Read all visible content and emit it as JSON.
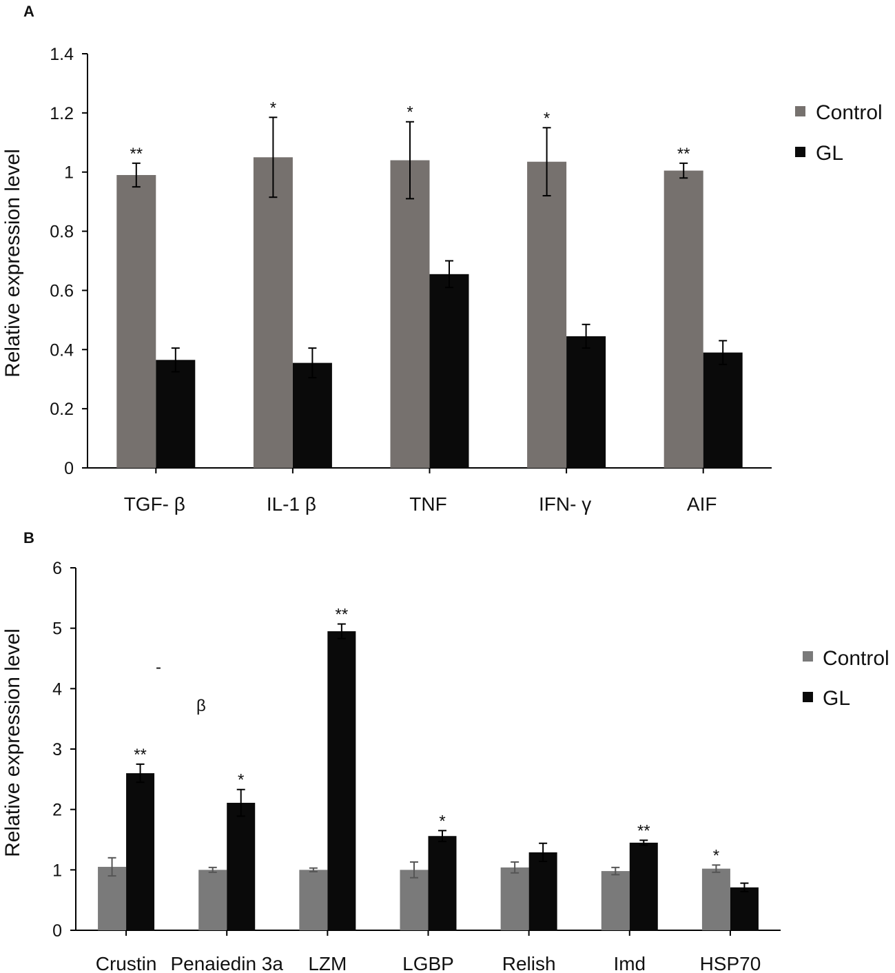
{
  "chart_data": [
    {
      "panel": "A",
      "type": "bar",
      "ylabel": "Relative expression level",
      "xlabel": "",
      "ylim": [
        0,
        1.4
      ],
      "yticks": [
        "0",
        "0.2",
        "0.4",
        "0.6",
        "0.8",
        "1",
        "1.2",
        "1.4"
      ],
      "categories": [
        "TGF- β",
        "IL-1 β",
        "TNF",
        "IFN- γ",
        "AIF"
      ],
      "series": [
        {
          "name": "Control",
          "color": "#76716e",
          "values": [
            0.99,
            1.05,
            1.04,
            1.035,
            1.005
          ],
          "errors": [
            0.04,
            0.135,
            0.13,
            0.115,
            0.025
          ]
        },
        {
          "name": "GL",
          "color": "#0a0a0a",
          "values": [
            0.365,
            0.355,
            0.655,
            0.445,
            0.39
          ],
          "errors": [
            0.04,
            0.05,
            0.045,
            0.04,
            0.04
          ]
        }
      ],
      "significance": [
        "**",
        "*",
        "*",
        "*",
        "**"
      ],
      "significance_on": [
        "Control",
        "Control",
        "Control",
        "Control",
        "Control"
      ],
      "legend": [
        "Control",
        "GL"
      ],
      "legend_position": "right"
    },
    {
      "panel": "B",
      "type": "bar",
      "ylabel": "Relative expression level",
      "xlabel": "",
      "ylim": [
        0,
        6
      ],
      "yticks": [
        "0",
        "1",
        "2",
        "3",
        "4",
        "5",
        "6"
      ],
      "categories": [
        "Crustin",
        "Penaiedin 3a",
        "LZM",
        "LGBP",
        "Relish",
        "Imd",
        "HSP70"
      ],
      "series": [
        {
          "name": "Control",
          "color": "#7a7a7a",
          "values": [
            1.05,
            1.0,
            1.0,
            1.0,
            1.04,
            0.98,
            1.02
          ],
          "errors": [
            0.15,
            0.04,
            0.03,
            0.13,
            0.09,
            0.06,
            0.06
          ]
        },
        {
          "name": "GL",
          "color": "#0a0a0a",
          "values": [
            2.6,
            2.11,
            4.95,
            1.56,
            1.29,
            1.45,
            0.71
          ],
          "errors": [
            0.15,
            0.22,
            0.12,
            0.09,
            0.15,
            0.04,
            0.07
          ]
        }
      ],
      "significance": [
        "**",
        "*",
        "**",
        "*",
        "",
        "**",
        "*"
      ],
      "significance_on": [
        "GL",
        "GL",
        "GL",
        "GL",
        "",
        "GL",
        "Control"
      ],
      "legend": [
        "Control",
        "GL"
      ],
      "legend_position": "right",
      "stray_marks": [
        "-",
        "β"
      ]
    }
  ]
}
